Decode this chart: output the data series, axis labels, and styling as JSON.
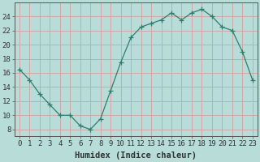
{
  "x": [
    0,
    1,
    2,
    3,
    4,
    5,
    6,
    7,
    8,
    9,
    10,
    11,
    12,
    13,
    14,
    15,
    16,
    17,
    18,
    19,
    20,
    21,
    22,
    23
  ],
  "y": [
    16.5,
    15.0,
    13.0,
    11.5,
    10.0,
    10.0,
    8.5,
    8.0,
    9.5,
    13.5,
    17.5,
    21.0,
    22.5,
    23.0,
    23.5,
    24.5,
    23.5,
    24.5,
    25.0,
    24.0,
    22.5,
    22.0,
    19.0,
    15.0
  ],
  "line_color": "#2e7d6e",
  "marker": "+",
  "marker_size": 4,
  "bg_color": "#b8ddd8",
  "grid_color": "#d4a0a0",
  "xlabel": "Humidex (Indice chaleur)",
  "ylim": [
    7,
    26
  ],
  "xlim": [
    -0.5,
    23.5
  ],
  "yticks": [
    8,
    10,
    12,
    14,
    16,
    18,
    20,
    22,
    24
  ],
  "xticks": [
    0,
    1,
    2,
    3,
    4,
    5,
    6,
    7,
    8,
    9,
    10,
    11,
    12,
    13,
    14,
    15,
    16,
    17,
    18,
    19,
    20,
    21,
    22,
    23
  ],
  "xtick_labels": [
    "0",
    "1",
    "2",
    "3",
    "4",
    "5",
    "6",
    "7",
    "8",
    "9",
    "10",
    "11",
    "12",
    "13",
    "14",
    "15",
    "16",
    "17",
    "18",
    "19",
    "20",
    "21",
    "22",
    "23"
  ],
  "axis_color": "#555555",
  "tick_color": "#333333",
  "font_size": 6.5,
  "xlabel_fontsize": 7.5
}
